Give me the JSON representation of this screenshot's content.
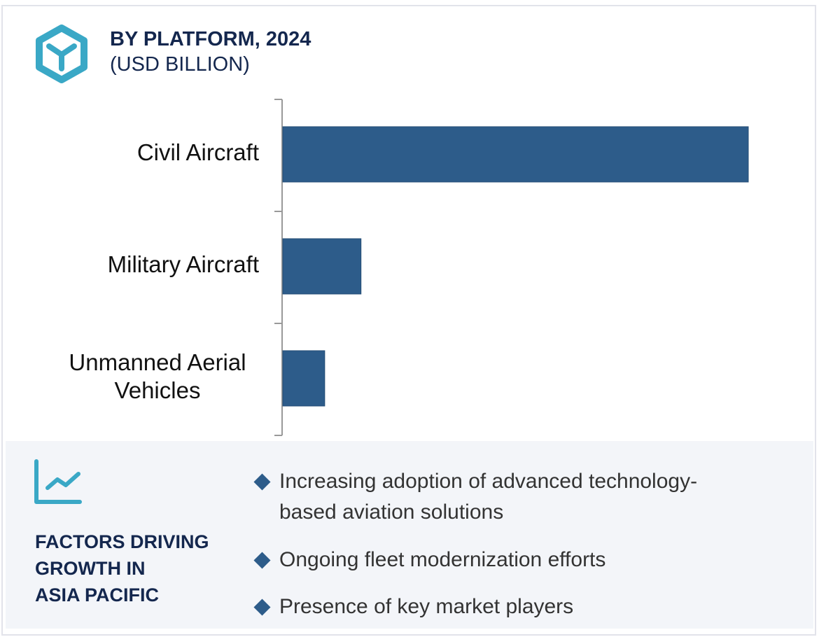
{
  "header": {
    "title": "BY PLATFORM, 2024",
    "subtitle": "(USD BILLION)",
    "icon": "hexagon-y-icon"
  },
  "chart_data": {
    "type": "bar",
    "orientation": "horizontal",
    "title": "BY PLATFORM, 2024",
    "unit": "(USD BILLION)",
    "categories": [
      "Civil Aircraft",
      "Military Aircraft",
      "Unmanned Aerial Vehicles"
    ],
    "values": [
      100,
      16.8,
      9.0
    ],
    "value_note": "relative bar lengths; no axis values printed",
    "color": "#2d5c8a",
    "grid": false,
    "legend": "none"
  },
  "panel": {
    "heading": [
      "FACTORS DRIVING",
      "GROWTH IN",
      "ASIA PACIFIC"
    ],
    "icon": "trend-chart-icon",
    "bullets": [
      "Increasing adoption of advanced technology-based aviation solutions",
      "Ongoing fleet modernization efforts",
      "Presence of key market players"
    ]
  },
  "colors": {
    "accent": "#3aa8c6",
    "navy": "#14274e",
    "bar": "#2d5c8a",
    "panel_bg": "#f3f5f9"
  }
}
